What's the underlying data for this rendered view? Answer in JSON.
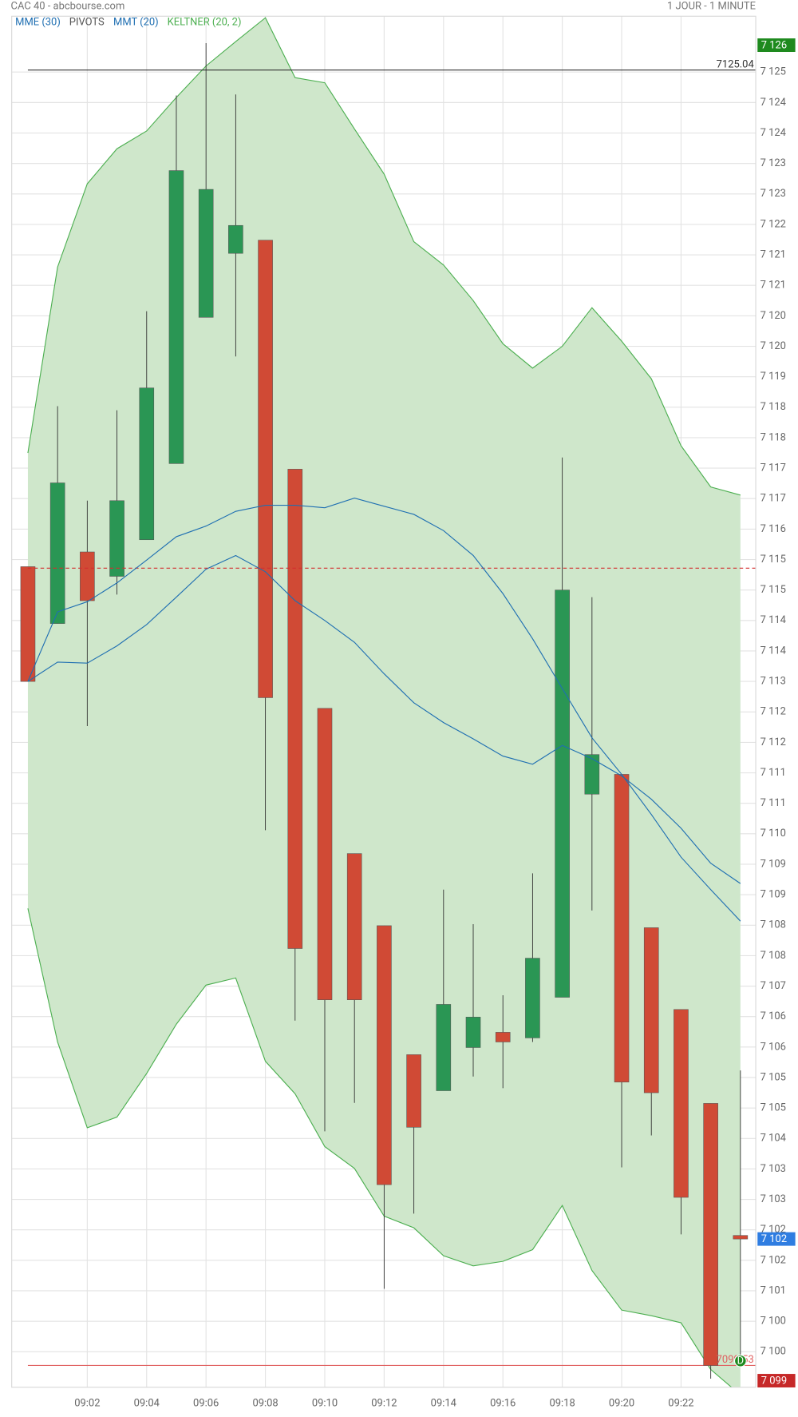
{
  "chart_data": {
    "type": "candlestick",
    "title": "CAC 40 - abcbourse.com",
    "subtitle": "1 JOUR - 1 MINUTE",
    "categories": [
      null,
      null,
      "09:02",
      null,
      "09:04",
      null,
      "09:06",
      null,
      "09:08",
      null,
      "09:10",
      null,
      "09:12",
      null,
      "09:14",
      null,
      "09:16",
      null,
      "09:18",
      null,
      "09:20",
      null,
      "09:22",
      null,
      null
    ],
    "open": [
      7115.26,
      7114.14,
      7115.55,
      7115.07,
      7115.79,
      7117.29,
      7120.17,
      7121.43,
      7121.69,
      7117.18,
      7112.47,
      7109.61,
      7108.19,
      7105.65,
      7104.94,
      7105.79,
      7106.09,
      7105.98,
      7106.78,
      7110.78,
      7111.17,
      7108.15,
      7106.54,
      7104.69,
      7102.09
    ],
    "high": [
      7115.26,
      7118.42,
      7116.56,
      7118.34,
      7120.29,
      7124.54,
      7125.57,
      7124.56,
      7121.69,
      7117.18,
      7112.47,
      7109.61,
      7108.19,
      7105.65,
      7108.9,
      7108.22,
      7106.82,
      7109.22,
      7117.41,
      7114.66,
      7111.17,
      7108.15,
      7106.54,
      7104.69,
      7105.34
    ],
    "low": [
      7113.0,
      7114.14,
      7112.12,
      7114.71,
      7115.79,
      7117.29,
      7120.17,
      7119.4,
      7110.07,
      7106.32,
      7104.14,
      7104.7,
      7101.04,
      7102.52,
      7104.94,
      7105.22,
      7104.99,
      7105.9,
      7106.78,
      7108.49,
      7103.43,
      7104.06,
      7102.11,
      7099.27,
      7099.62
    ],
    "close": [
      7113.0,
      7116.91,
      7114.59,
      7116.56,
      7118.78,
      7123.06,
      7122.69,
      7121.98,
      7112.68,
      7107.74,
      7106.73,
      7106.73,
      7103.09,
      7104.22,
      7106.64,
      7106.39,
      7105.9,
      7107.55,
      7114.8,
      7111.56,
      7105.11,
      7104.9,
      7102.84,
      7099.53,
      7102.02
    ],
    "up_color": "#2a9654",
    "down_color": "#d04a35",
    "indicators": [
      {
        "name": "MME (30)",
        "kind": "line",
        "color": "#1f6fb2",
        "values": [
          7113.0,
          7113.38,
          7113.36,
          7113.7,
          7114.12,
          7114.66,
          7115.21,
          7115.48,
          7115.16,
          7114.59,
          7114.2,
          7113.77,
          7113.15,
          7112.58,
          7112.19,
          7111.87,
          7111.53,
          7111.37,
          7111.74,
          7111.48,
          7111.14,
          7110.68,
          7110.11,
          7109.42,
          7109.02
        ]
      },
      {
        "name": "PIVOTS",
        "kind": "hline",
        "color": "#d32f2f",
        "legend_color": "#555555",
        "value": 7115.23
      },
      {
        "name": "MMT (20)",
        "kind": "line",
        "color": "#1f6fb2",
        "values": [
          7113.0,
          7114.37,
          7114.57,
          7114.94,
          7115.39,
          7115.85,
          7116.06,
          7116.35,
          7116.47,
          7116.47,
          7116.42,
          7116.61,
          7116.45,
          7116.29,
          7115.97,
          7115.48,
          7114.73,
          7113.84,
          7112.86,
          7111.89,
          7111.17,
          7110.38,
          7109.54,
          7108.9,
          7108.28
        ]
      },
      {
        "name": "KELTNER (20, 2)",
        "kind": "band",
        "color": "#4caf50",
        "fill": "#cfe7cb",
        "upper": [
          7117.5,
          7121.16,
          7122.8,
          7123.49,
          7123.84,
          7124.5,
          7125.12,
          7125.6,
          7126.07,
          7124.89,
          7124.79,
          7123.88,
          7122.99,
          7121.66,
          7121.2,
          7120.5,
          7119.65,
          7119.17,
          7119.6,
          7120.36,
          7119.7,
          7118.96,
          7117.64,
          7116.83,
          7116.67
        ],
        "lower": [
          7108.53,
          7105.9,
          7104.21,
          7104.42,
          7105.28,
          7106.25,
          7107.02,
          7107.16,
          7105.52,
          7104.88,
          7103.84,
          7103.41,
          7102.47,
          7102.24,
          7101.69,
          7101.49,
          7101.58,
          7101.81,
          7102.68,
          7101.4,
          7100.62,
          7100.51,
          7100.37,
          7099.45,
          7098.95
        ]
      }
    ],
    "hlines": [
      {
        "value": 7125.04,
        "label": "7125.04",
        "color": "#333333"
      },
      {
        "value": 7099.53,
        "label": "7099.53",
        "color": "#e06060"
      }
    ],
    "price_tags": [
      {
        "value": 7125.53,
        "label": "7 126",
        "color": "#1e8a1e"
      },
      {
        "value": 7102.02,
        "label": "7 102",
        "color": "#2f7de1"
      },
      {
        "value": 7099.23,
        "label": "7 099",
        "color": "#c62828"
      }
    ],
    "markers": [
      {
        "index": 24,
        "value": 7099.62,
        "label": "D",
        "color": "#1e8a1e"
      }
    ],
    "ylim": [
      7099.1,
      7126.1
    ],
    "yticks": [
      {
        "value": 7125.0,
        "label": "7 125"
      },
      {
        "value": 7124.4,
        "label": "7 124"
      },
      {
        "value": 7123.8,
        "label": "7 124"
      },
      {
        "value": 7123.2,
        "label": "7 123"
      },
      {
        "value": 7122.6,
        "label": "7 123"
      },
      {
        "value": 7122.0,
        "label": "7 122"
      },
      {
        "value": 7121.4,
        "label": "7 121"
      },
      {
        "value": 7120.8,
        "label": "7 121"
      },
      {
        "value": 7120.2,
        "label": "7 120"
      },
      {
        "value": 7119.6,
        "label": "7 120"
      },
      {
        "value": 7119.0,
        "label": "7 119"
      },
      {
        "value": 7118.4,
        "label": "7 118"
      },
      {
        "value": 7117.8,
        "label": "7 118"
      },
      {
        "value": 7117.2,
        "label": "7 117"
      },
      {
        "value": 7116.6,
        "label": "7 117"
      },
      {
        "value": 7116.0,
        "label": "7 116"
      },
      {
        "value": 7115.4,
        "label": "7 115"
      },
      {
        "value": 7114.8,
        "label": "7 115"
      },
      {
        "value": 7114.2,
        "label": "7 114"
      },
      {
        "value": 7113.6,
        "label": "7 114"
      },
      {
        "value": 7113.0,
        "label": "7 113"
      },
      {
        "value": 7112.4,
        "label": "7 112"
      },
      {
        "value": 7111.8,
        "label": "7 112"
      },
      {
        "value": 7111.2,
        "label": "7 111"
      },
      {
        "value": 7110.6,
        "label": "7 111"
      },
      {
        "value": 7110.0,
        "label": "7 110"
      },
      {
        "value": 7109.4,
        "label": "7 109"
      },
      {
        "value": 7108.8,
        "label": "7 109"
      },
      {
        "value": 7108.2,
        "label": "7 108"
      },
      {
        "value": 7107.6,
        "label": "7 108"
      },
      {
        "value": 7107.0,
        "label": "7 107"
      },
      {
        "value": 7106.4,
        "label": "7 106"
      },
      {
        "value": 7105.8,
        "label": "7 106"
      },
      {
        "value": 7105.2,
        "label": "7 105"
      },
      {
        "value": 7104.6,
        "label": "7 105"
      },
      {
        "value": 7104.0,
        "label": "7 104"
      },
      {
        "value": 7103.4,
        "label": "7 103"
      },
      {
        "value": 7102.8,
        "label": "7 103"
      },
      {
        "value": 7102.2,
        "label": "7 102"
      },
      {
        "value": 7101.6,
        "label": "7 102"
      },
      {
        "value": 7101.0,
        "label": "7 101"
      },
      {
        "value": 7100.4,
        "label": "7 100"
      },
      {
        "value": 7099.8,
        "label": "7 100"
      }
    ],
    "grid": true
  }
}
